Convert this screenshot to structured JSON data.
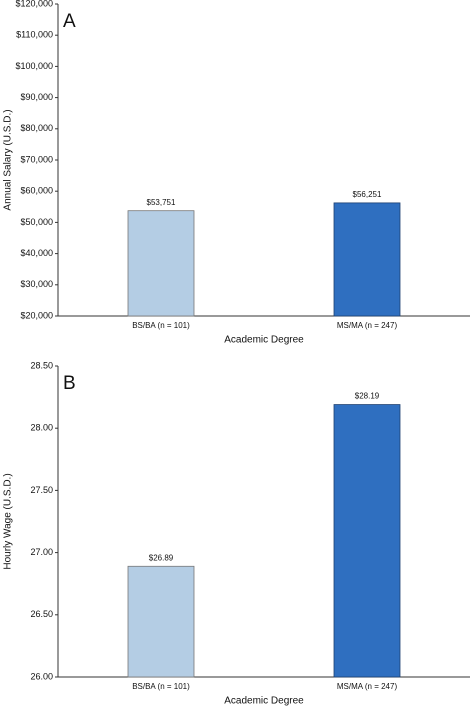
{
  "chart_data": [
    {
      "type": "bar",
      "panel_label": "A",
      "x_label": "Academic Degree",
      "y_label": "Annual Salary (U.S.D.)",
      "categories": [
        "BS/BA (n = 101)",
        "MS/MA (n = 247)"
      ],
      "values": [
        53751,
        56251
      ],
      "value_labels": [
        "$53,751",
        "$56,251"
      ],
      "colors": [
        "#b4cde4",
        "#2f6fc0"
      ],
      "ylim": [
        20000,
        120000
      ],
      "yticks": [
        {
          "value": 20000,
          "label": "$20,000"
        },
        {
          "value": 30000,
          "label": "$30,000"
        },
        {
          "value": 40000,
          "label": "$40,000"
        },
        {
          "value": 50000,
          "label": "$50,000"
        },
        {
          "value": 60000,
          "label": "$60,000"
        },
        {
          "value": 70000,
          "label": "$70,000"
        },
        {
          "value": 80000,
          "label": "$80,000"
        },
        {
          "value": 90000,
          "label": "$90,000"
        },
        {
          "value": 100000,
          "label": "$100,000"
        },
        {
          "value": 110000,
          "label": "$110,000"
        },
        {
          "value": 120000,
          "label": "$120,000"
        }
      ],
      "grid": false
    },
    {
      "type": "bar",
      "panel_label": "B",
      "x_label": "Academic Degree",
      "y_label": "Hourly Wage (U.S.D.)",
      "categories": [
        "BS/BA (n = 101)",
        "MS/MA (n = 247)"
      ],
      "values": [
        26.89,
        28.19
      ],
      "value_labels": [
        "$26.89",
        "$28.19"
      ],
      "colors": [
        "#b4cde4",
        "#2f6fc0"
      ],
      "ylim": [
        26,
        28.5
      ],
      "yticks": [
        {
          "value": 26,
          "label": "26.00"
        },
        {
          "value": 26.5,
          "label": "26.50"
        },
        {
          "value": 27,
          "label": "27.00"
        },
        {
          "value": 27.5,
          "label": "27.50"
        },
        {
          "value": 28,
          "label": "28.00"
        },
        {
          "value": 28.5,
          "label": "28.50"
        }
      ],
      "grid": false
    }
  ]
}
